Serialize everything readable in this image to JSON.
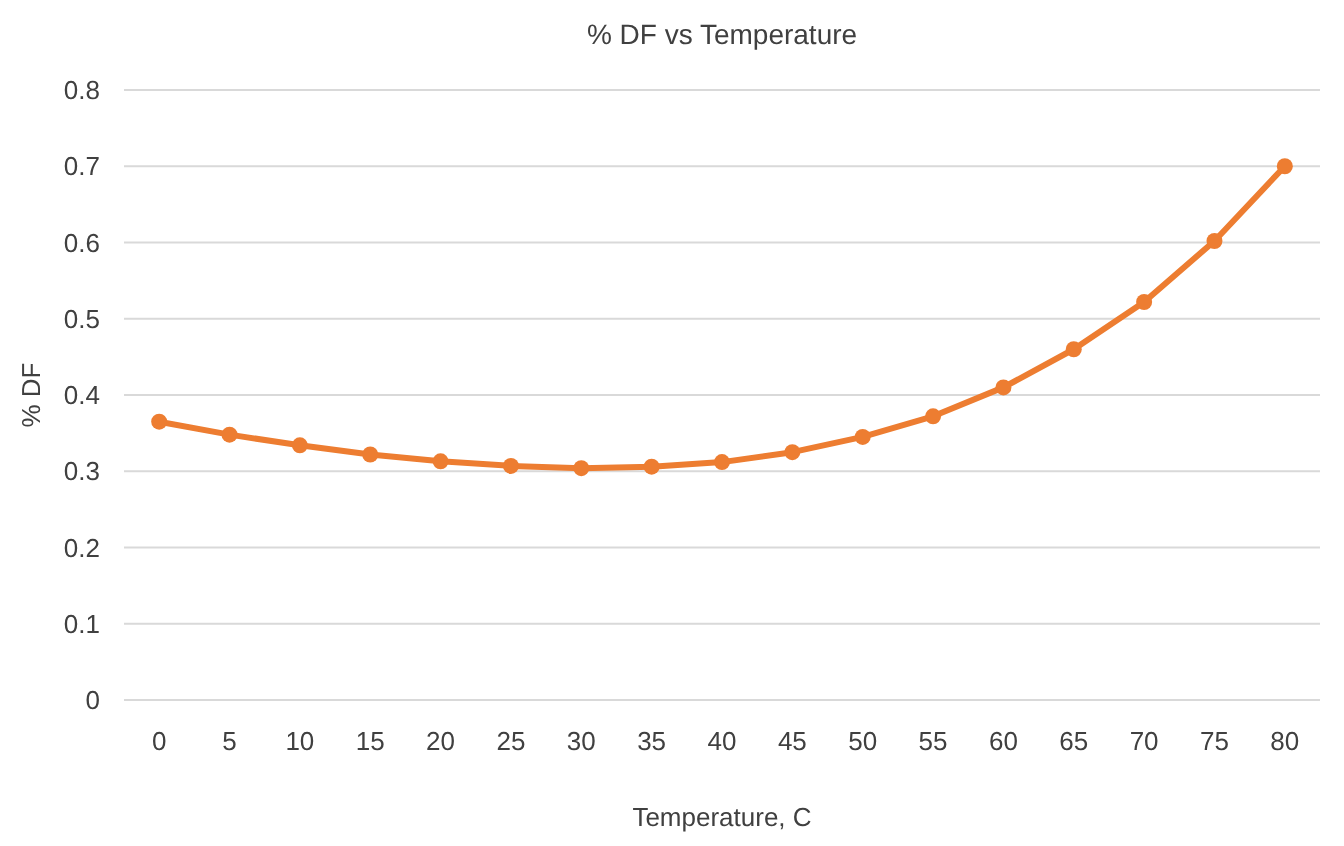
{
  "chart_data": {
    "type": "line",
    "title": "% DF vs Temperature",
    "xlabel": "Temperature, C",
    "ylabel": "% DF",
    "categories": [
      "0",
      "5",
      "10",
      "15",
      "20",
      "25",
      "30",
      "35",
      "40",
      "45",
      "50",
      "55",
      "60",
      "65",
      "70",
      "75",
      "80"
    ],
    "series": [
      {
        "color": "#ed7d31",
        "values": [
          0.365,
          0.348,
          0.334,
          0.322,
          0.313,
          0.307,
          0.304,
          0.306,
          0.312,
          0.325,
          0.345,
          0.372,
          0.41,
          0.46,
          0.522,
          0.602,
          0.7
        ]
      }
    ],
    "ylim": [
      0,
      0.8
    ],
    "yticks": [
      {
        "value": 0,
        "label": "0"
      },
      0.1,
      0.2,
      0.3,
      0.4,
      0.5,
      0.6,
      0.7,
      0.8
    ],
    "grid": "y",
    "marker": "circle",
    "line_style": "solid"
  }
}
